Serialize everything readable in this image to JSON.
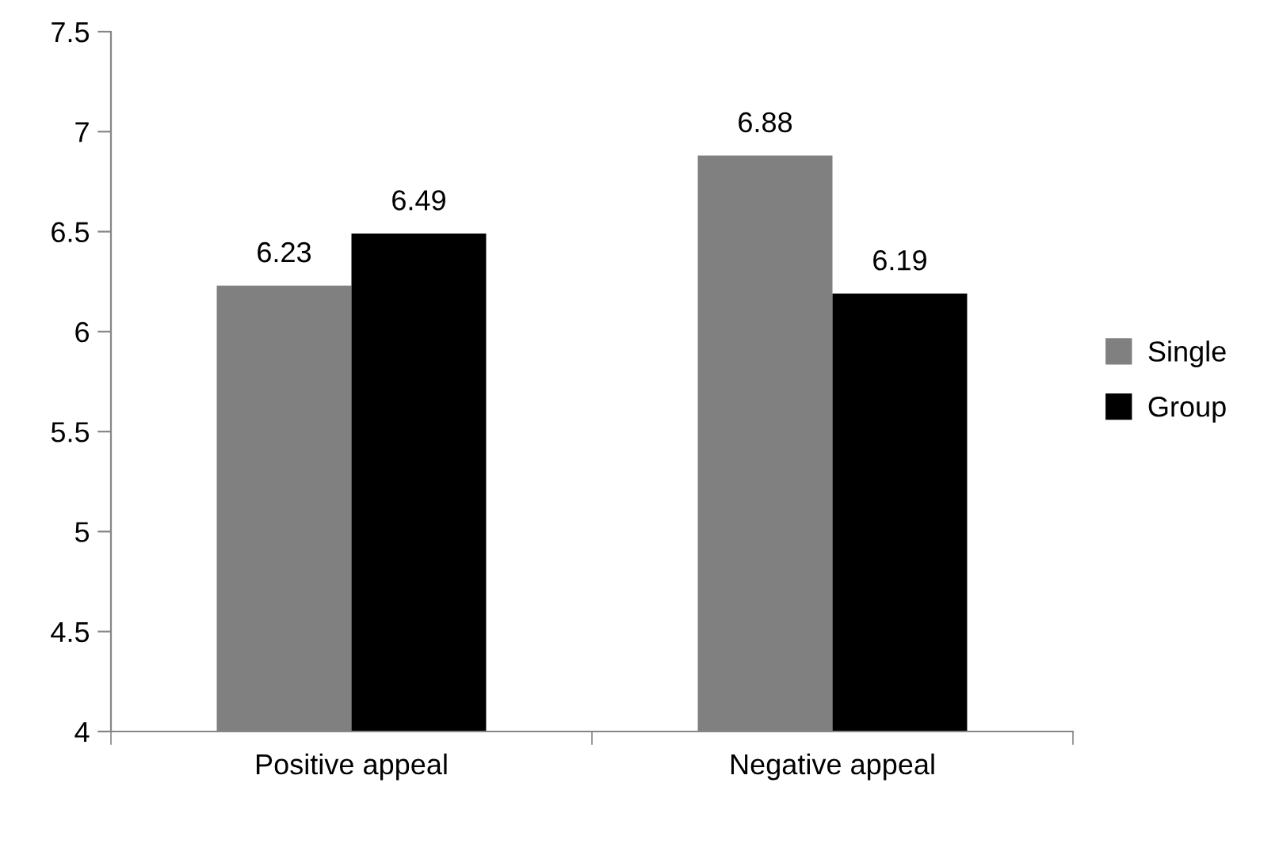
{
  "chart_data": {
    "type": "bar",
    "categories": [
      "Positive appeal",
      "Negative appeal"
    ],
    "series": [
      {
        "name": "Single",
        "color": "#808080",
        "values": [
          6.23,
          6.88
        ]
      },
      {
        "name": "Group",
        "color": "#000000",
        "values": [
          6.49,
          6.19
        ]
      }
    ],
    "ylim": [
      4,
      7.5
    ],
    "yticks": [
      4,
      4.5,
      5,
      5.5,
      6,
      6.5,
      7,
      7.5
    ],
    "data_labels": true,
    "grid": false,
    "legend": "right"
  }
}
